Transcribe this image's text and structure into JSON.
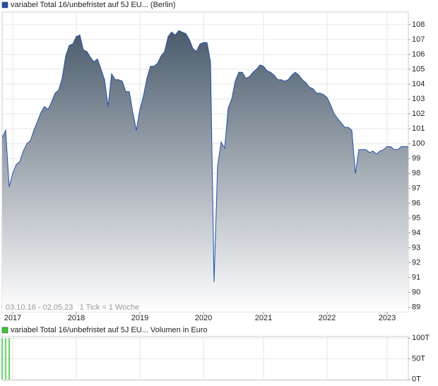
{
  "chart_data": [
    {
      "type": "area",
      "categories": [
        null,
        null,
        null,
        "2017",
        null,
        null,
        null,
        null,
        null,
        null,
        null,
        null,
        null,
        null,
        null,
        null,
        null,
        null,
        null,
        null,
        null,
        "2018",
        null,
        null,
        null,
        null,
        null,
        null,
        null,
        null,
        null,
        null,
        null,
        null,
        null,
        null,
        null,
        null,
        null,
        "2019",
        null,
        null,
        null,
        null,
        null,
        null,
        null,
        null,
        null,
        null,
        null,
        null,
        null,
        null,
        null,
        null,
        null,
        "2020",
        null,
        null,
        null,
        null,
        null,
        null,
        null,
        null,
        null,
        null,
        null,
        null,
        null,
        null,
        null,
        null,
        "2021",
        null,
        null,
        null,
        null,
        null,
        null,
        null,
        null,
        null,
        null,
        null,
        null,
        null,
        null,
        null,
        null,
        null,
        "2022",
        null,
        null,
        null,
        null,
        null,
        null,
        null,
        null,
        null,
        null,
        null,
        null,
        null,
        null,
        null,
        null,
        "2023",
        null,
        null,
        null,
        null,
        null,
        null
      ],
      "series": [
        {
          "name": "variabel Total 16/unbefristet auf 5J EU...  (Berlin)",
          "color": "#1f4fb0",
          "values": [
            100.4,
            100.9,
            97.1,
            98.0,
            98.6,
            98.8,
            99.5,
            100.0,
            100.2,
            100.9,
            101.5,
            102.1,
            102.5,
            102.3,
            102.8,
            103.4,
            103.6,
            104.4,
            105.9,
            106.6,
            106.7,
            107.2,
            107.3,
            106.3,
            106.2,
            105.8,
            105.5,
            105.7,
            105.0,
            104.3,
            102.5,
            104.7,
            104.3,
            104.3,
            104.2,
            103.5,
            103.5,
            102.1,
            100.9,
            102.3,
            103.2,
            104.4,
            105.2,
            105.2,
            105.4,
            105.9,
            106.2,
            107.2,
            107.5,
            107.3,
            107.6,
            107.5,
            107.4,
            107.0,
            106.4,
            106.2,
            106.7,
            106.8,
            106.8,
            105.5,
            90.7,
            98.5,
            100.1,
            99.7,
            102.4,
            103.0,
            104.2,
            104.8,
            104.8,
            104.4,
            104.5,
            104.8,
            105.0,
            105.3,
            105.2,
            104.9,
            104.8,
            104.6,
            104.3,
            104.3,
            104.2,
            104.3,
            104.6,
            104.8,
            104.6,
            104.3,
            104.1,
            103.8,
            103.7,
            103.4,
            103.4,
            103.3,
            103.1,
            102.6,
            102.0,
            101.7,
            101.4,
            101.1,
            101.1,
            100.9,
            98.0,
            99.6,
            99.6,
            99.6,
            99.4,
            99.5,
            99.3,
            99.5,
            99.6,
            99.8,
            99.8,
            99.6,
            99.6,
            99.8,
            99.8,
            99.8
          ]
        }
      ],
      "annotation": "03.10.16 - 02.05.23   1 Tick = 1 Woche",
      "ylim": [
        88.7,
        108.85
      ],
      "yticks": [
        89,
        90,
        91,
        92,
        93,
        94,
        95,
        96,
        97,
        98,
        99,
        100,
        101,
        102,
        103,
        104,
        105,
        106,
        107,
        108
      ],
      "grid": true
    },
    {
      "type": "bar",
      "series": [
        {
          "name": "variabel Total 16/unbefristet auf 5J EU... Volumen in Euro",
          "color": "#33cc33",
          "values": [
            100000,
            100000,
            100000,
            0,
            0,
            0,
            0,
            0,
            0,
            0,
            0,
            0,
            0,
            0,
            0,
            0,
            0,
            0,
            0,
            0,
            0,
            0,
            0,
            0,
            0,
            0,
            0,
            0,
            0,
            0,
            0,
            0,
            0,
            0,
            0,
            0,
            0,
            0,
            0,
            0,
            0,
            0,
            0,
            0,
            0,
            0,
            0,
            0,
            0,
            0,
            0,
            0,
            0,
            0,
            0,
            0,
            0,
            0,
            0,
            0,
            0,
            0,
            0,
            0,
            0,
            0,
            0,
            0,
            0,
            0,
            0,
            0,
            0,
            0,
            0,
            0,
            0,
            0,
            0,
            0,
            0,
            0,
            0,
            0,
            0,
            0,
            0,
            0,
            0,
            0,
            0,
            0,
            0,
            0,
            0,
            0,
            0,
            0,
            0,
            0,
            0,
            0,
            0,
            0,
            0,
            0,
            0,
            0,
            0,
            0,
            0,
            0,
            0,
            0,
            0,
            0
          ]
        }
      ],
      "ylim": [
        -2000,
        104000
      ],
      "yticks": [
        {
          "value": 0,
          "label": "0T"
        },
        {
          "value": 50000,
          "label": "50T"
        },
        {
          "value": 100000,
          "label": "100T"
        }
      ],
      "grid": true
    }
  ]
}
